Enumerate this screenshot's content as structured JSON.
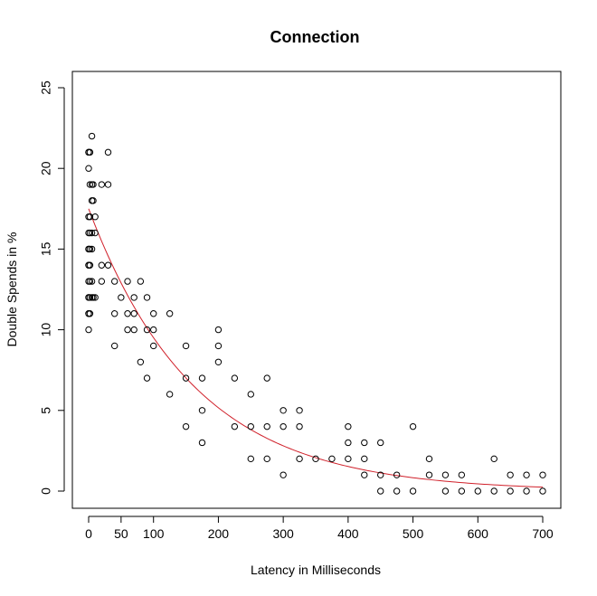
{
  "chart_data": {
    "type": "scatter",
    "title": "Connection",
    "xlabel": "Latency in Milliseconds",
    "ylabel": "Double Spends in %",
    "xlim": [
      -10,
      710
    ],
    "ylim": [
      -1,
      25.5
    ],
    "x_ticks": [
      0,
      50,
      100,
      200,
      300,
      400,
      500,
      600,
      700
    ],
    "y_ticks": [
      0,
      5,
      10,
      15,
      20,
      25
    ],
    "grid": false,
    "legend": "none",
    "series": [
      {
        "marker": "open-circle",
        "color": "#000000",
        "points": [
          [
            0,
            10
          ],
          [
            0,
            11
          ],
          [
            0,
            11
          ],
          [
            0,
            12
          ],
          [
            0,
            12
          ],
          [
            0,
            13
          ],
          [
            0,
            14
          ],
          [
            0,
            14
          ],
          [
            0,
            15
          ],
          [
            0,
            15
          ],
          [
            0,
            16
          ],
          [
            0,
            17
          ],
          [
            0,
            20
          ],
          [
            0,
            21
          ],
          [
            0,
            21
          ],
          [
            2,
            11
          ],
          [
            2,
            12
          ],
          [
            2,
            13
          ],
          [
            2,
            14
          ],
          [
            2,
            15
          ],
          [
            2,
            16
          ],
          [
            2,
            17
          ],
          [
            2,
            19
          ],
          [
            2,
            21
          ],
          [
            5,
            12
          ],
          [
            5,
            13
          ],
          [
            5,
            15
          ],
          [
            5,
            16
          ],
          [
            5,
            18
          ],
          [
            5,
            19
          ],
          [
            5,
            22
          ],
          [
            7,
            12
          ],
          [
            7,
            18
          ],
          [
            7,
            19
          ],
          [
            10,
            12
          ],
          [
            10,
            16
          ],
          [
            10,
            17
          ],
          [
            20,
            13
          ],
          [
            20,
            14
          ],
          [
            20,
            19
          ],
          [
            30,
            14
          ],
          [
            30,
            19
          ],
          [
            30,
            21
          ],
          [
            40,
            9
          ],
          [
            40,
            11
          ],
          [
            40,
            13
          ],
          [
            50,
            12
          ],
          [
            60,
            10
          ],
          [
            60,
            11
          ],
          [
            60,
            13
          ],
          [
            70,
            10
          ],
          [
            70,
            11
          ],
          [
            70,
            12
          ],
          [
            80,
            8
          ],
          [
            80,
            13
          ],
          [
            90,
            7
          ],
          [
            90,
            10
          ],
          [
            90,
            12
          ],
          [
            100,
            9
          ],
          [
            100,
            10
          ],
          [
            100,
            11
          ],
          [
            125,
            6
          ],
          [
            125,
            11
          ],
          [
            150,
            4
          ],
          [
            150,
            7
          ],
          [
            150,
            9
          ],
          [
            175,
            3
          ],
          [
            175,
            5
          ],
          [
            175,
            7
          ],
          [
            200,
            8
          ],
          [
            200,
            9
          ],
          [
            200,
            10
          ],
          [
            225,
            4
          ],
          [
            225,
            7
          ],
          [
            250,
            2
          ],
          [
            250,
            4
          ],
          [
            250,
            6
          ],
          [
            275,
            2
          ],
          [
            275,
            4
          ],
          [
            275,
            7
          ],
          [
            300,
            1
          ],
          [
            300,
            4
          ],
          [
            300,
            5
          ],
          [
            325,
            2
          ],
          [
            325,
            4
          ],
          [
            325,
            5
          ],
          [
            350,
            2
          ],
          [
            375,
            2
          ],
          [
            400,
            2
          ],
          [
            400,
            3
          ],
          [
            400,
            4
          ],
          [
            425,
            1
          ],
          [
            425,
            2
          ],
          [
            425,
            3
          ],
          [
            450,
            0
          ],
          [
            450,
            1
          ],
          [
            450,
            3
          ],
          [
            475,
            0
          ],
          [
            475,
            1
          ],
          [
            500,
            0
          ],
          [
            500,
            4
          ],
          [
            525,
            1
          ],
          [
            525,
            2
          ],
          [
            550,
            0
          ],
          [
            550,
            1
          ],
          [
            575,
            0
          ],
          [
            575,
            1
          ],
          [
            600,
            0
          ],
          [
            625,
            0
          ],
          [
            625,
            2
          ],
          [
            650,
            0
          ],
          [
            650,
            1
          ],
          [
            675,
            0
          ],
          [
            675,
            1
          ],
          [
            700,
            0
          ],
          [
            700,
            1
          ]
        ]
      }
    ],
    "fit_curve": {
      "type": "exponential",
      "color": "#d0202a",
      "a": 17.5,
      "b": 0.0061,
      "x_range": [
        0,
        700
      ]
    }
  }
}
